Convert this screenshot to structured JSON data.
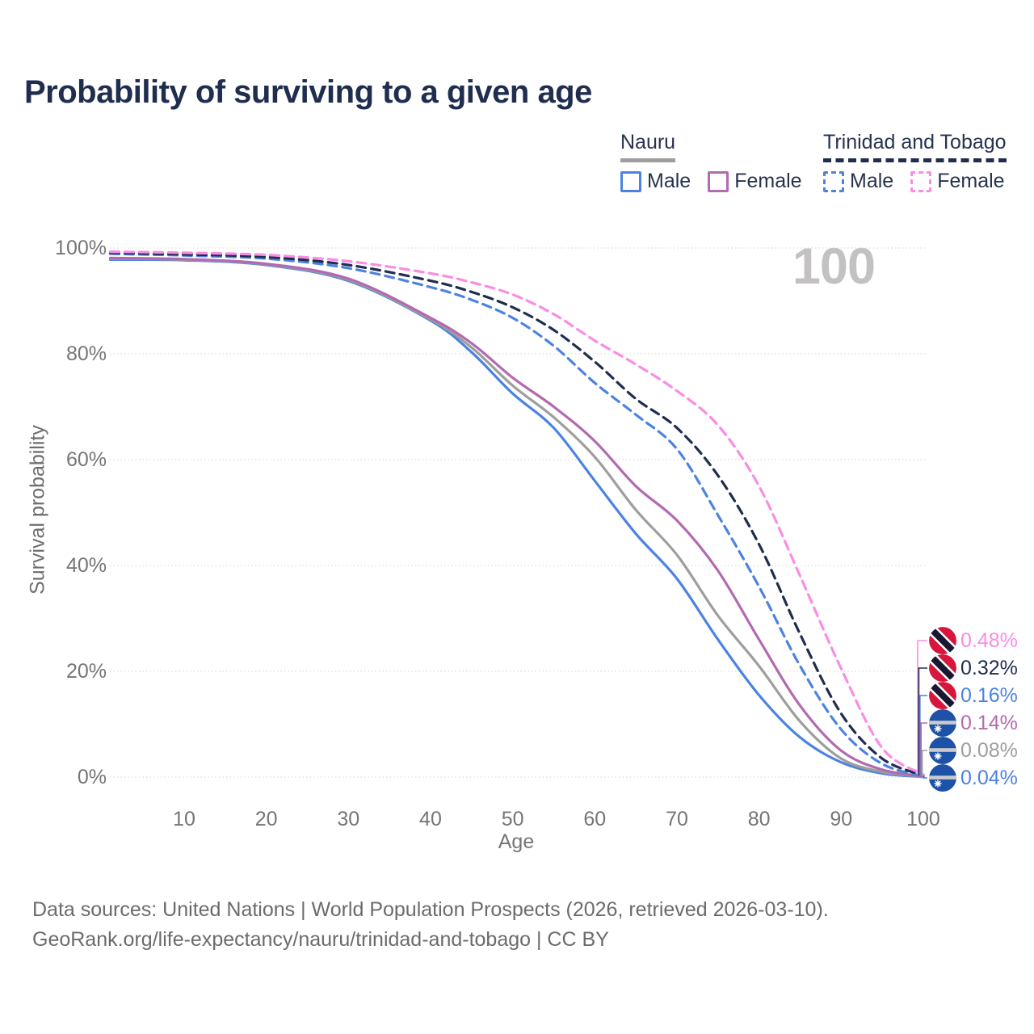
{
  "title": "Probability of surviving to a given age",
  "watermark_age": "100",
  "colors": {
    "title_text": "#1f2d4f",
    "legend_text": "#26334d",
    "axis_text": "#757575",
    "axis_title_text": "#6e6e6e",
    "footer_text": "#6b6b6b",
    "watermark": "#c4c1c1",
    "gridline": "#dcdcdc",
    "nauru_flag_blue": "#1d52a8",
    "nauru_flag_stripe": "#cbcbcb",
    "nauru_flag_star": "#ffffff",
    "tt_flag_red": "#d6163c",
    "tt_flag_band": "#181830",
    "tt_flag_band_border": "#ffffff"
  },
  "legend": {
    "groups": [
      {
        "label": "Nauru",
        "line_style": "solid",
        "line_color": "#9e9e9e",
        "items": [
          {
            "label": "Male",
            "color": "#4c83e1",
            "dashed": false
          },
          {
            "label": "Female",
            "color": "#b26ab0",
            "dashed": false
          }
        ]
      },
      {
        "label": "Trinidad and Tobago",
        "line_style": "dashed",
        "line_color": "#1f2d4f",
        "items": [
          {
            "label": "Male",
            "color": "#4c83e1",
            "dashed": true
          },
          {
            "label": "Female",
            "color": "#fb8ce4",
            "dashed": true
          }
        ]
      }
    ]
  },
  "chart_data": {
    "type": "line",
    "title": "Probability of surviving to a given age",
    "xlabel": "Age",
    "ylabel": "Survival probability",
    "legend_position": "top-right",
    "x_axis": {
      "range": [
        1,
        100
      ],
      "ticks": [
        10,
        20,
        30,
        40,
        50,
        60,
        70,
        80,
        90,
        100
      ]
    },
    "y_axis": {
      "range": [
        0,
        100
      ],
      "ticks": [
        0,
        20,
        40,
        60,
        80,
        100
      ],
      "tick_labels": [
        "0%",
        "20%",
        "40%",
        "60%",
        "80%",
        "100%"
      ],
      "grid": "dotted-horizontal"
    },
    "x": [
      1,
      10,
      20,
      30,
      40,
      45,
      50,
      55,
      60,
      65,
      70,
      75,
      80,
      85,
      90,
      95,
      100
    ],
    "series": [
      {
        "id": "trinidad-and-tobago-female",
        "name": "Trinidad and Tobago Female",
        "color": "#fb8ce4",
        "dashed": true,
        "flag": "trinidad-and-tobago",
        "end_label": "0.48%",
        "end_value": 0.48,
        "values": [
          99.3,
          99.1,
          98.7,
          97.5,
          95.2,
          93.5,
          91.2,
          87.5,
          82.5,
          78.0,
          73.0,
          66.5,
          55.0,
          38.0,
          20.5,
          5.5,
          0.48
        ]
      },
      {
        "id": "trinidad-and-tobago-all",
        "name": "Trinidad and Tobago",
        "color": "#1f2d4f",
        "dashed": true,
        "flag": "trinidad-and-tobago",
        "end_label": "0.32%",
        "end_value": 0.32,
        "values": [
          99.1,
          98.8,
          98.3,
          96.8,
          93.8,
          91.7,
          88.8,
          84.5,
          78.5,
          71.5,
          66.0,
          57.0,
          44.0,
          27.0,
          12.0,
          3.5,
          0.32
        ]
      },
      {
        "id": "trinidad-and-tobago-male",
        "name": "Trinidad and Tobago Male",
        "color": "#4c83e1",
        "dashed": true,
        "flag": "trinidad-and-tobago",
        "end_label": "0.16%",
        "end_value": 0.16,
        "values": [
          98.9,
          98.6,
          98.0,
          96.2,
          92.6,
          90.2,
          86.8,
          81.5,
          74.5,
          68.5,
          62.0,
          49.5,
          36.0,
          21.0,
          9.0,
          2.5,
          0.16
        ]
      },
      {
        "id": "nauru-female",
        "name": "Nauru Female",
        "color": "#b26ab0",
        "dashed": false,
        "flag": "nauru",
        "end_label": "0.14%",
        "end_value": 0.14,
        "values": [
          98.1,
          97.9,
          97.0,
          94.2,
          86.8,
          82.0,
          75.5,
          70.0,
          63.5,
          55.0,
          48.5,
          39.0,
          26.0,
          13.5,
          5.0,
          1.4,
          0.14
        ]
      },
      {
        "id": "nauru-all",
        "name": "Nauru",
        "color": "#9e9e9e",
        "dashed": false,
        "flag": "nauru",
        "end_label": "0.08%",
        "end_value": 0.08,
        "values": [
          98.0,
          97.8,
          96.9,
          94.0,
          86.5,
          81.2,
          74.0,
          68.0,
          60.5,
          50.5,
          42.0,
          30.5,
          21.0,
          10.5,
          3.5,
          1.0,
          0.08
        ]
      },
      {
        "id": "nauru-male",
        "name": "Nauru Male",
        "color": "#4c83e1",
        "dashed": false,
        "flag": "nauru",
        "end_label": "0.04%",
        "end_value": 0.04,
        "values": [
          97.8,
          97.7,
          96.8,
          93.8,
          86.3,
          80.3,
          72.5,
          66.0,
          56.0,
          46.0,
          37.5,
          26.0,
          15.5,
          7.5,
          2.8,
          0.7,
          0.04
        ]
      }
    ]
  },
  "footer": {
    "line1": "Data sources: United Nations | World Population Prospects (2026, retrieved 2026-03-10).",
    "line2": "GeoRank.org/life-expectancy/nauru/trinidad-and-tobago | CC BY"
  }
}
